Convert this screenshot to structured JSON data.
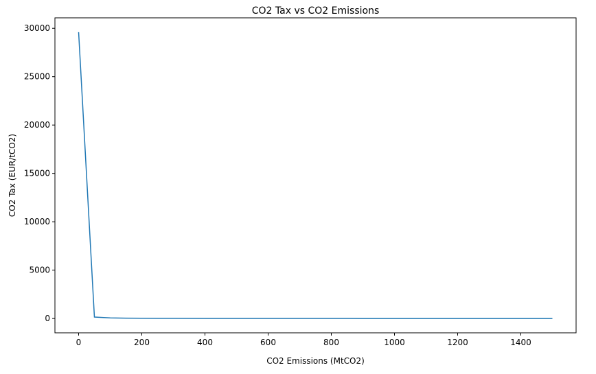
{
  "chart_data": {
    "type": "line",
    "title": "CO2 Tax vs CO2 Emissions",
    "xlabel": "CO2 Emissions (MtCO2)",
    "ylabel": "CO2 Tax (EUR/tCO2)",
    "xlim": [
      -75,
      1575
    ],
    "ylim": [
      -1480,
      31080
    ],
    "xticks": [
      0,
      200,
      400,
      600,
      800,
      1000,
      1200,
      1400
    ],
    "yticks": [
      0,
      5000,
      10000,
      15000,
      20000,
      25000,
      30000
    ],
    "grid": false,
    "line_color": "#1f77b4",
    "series": [
      {
        "x": [
          0,
          50,
          100,
          150,
          200,
          250,
          300,
          400,
          500,
          600,
          700,
          800,
          900,
          1000,
          1100,
          1200,
          1300,
          1400,
          1500
        ],
        "values": [
          29600,
          150,
          60,
          35,
          25,
          20,
          15,
          12,
          10,
          8,
          7,
          6,
          5,
          5,
          4,
          4,
          3,
          3,
          3
        ]
      }
    ]
  }
}
